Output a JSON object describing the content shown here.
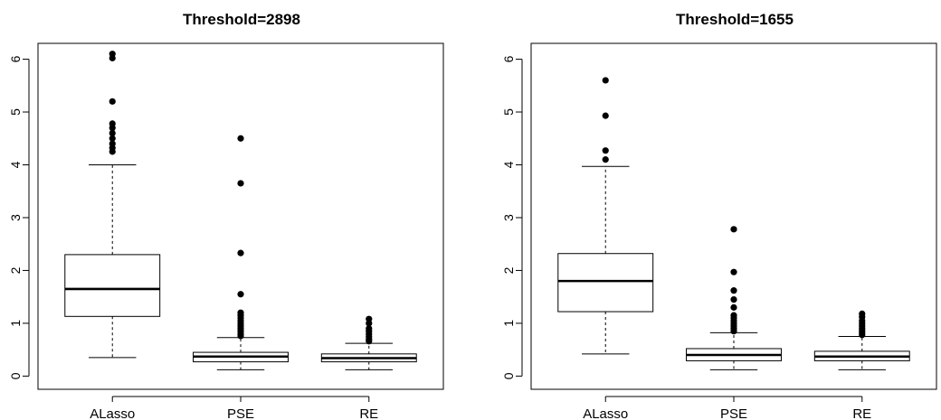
{
  "chart_data": [
    {
      "type": "boxplot",
      "title": "Threshold=2898",
      "xlabel": "",
      "ylabel": "",
      "ylim": [
        -0.25,
        6.3
      ],
      "yticks": [
        0,
        1,
        2,
        3,
        4,
        5,
        6
      ],
      "ytick_labels": [
        "0",
        "1",
        "2",
        "3",
        "4",
        "5",
        "6"
      ],
      "categories": [
        "ALasso",
        "PSE",
        "RE"
      ],
      "boxes": [
        {
          "name": "ALasso",
          "whisker_low": 0.35,
          "q1": 1.13,
          "median": 1.65,
          "q3": 2.3,
          "whisker_high": 4.0,
          "outliers": [
            4.25,
            4.32,
            4.4,
            4.5,
            4.6,
            4.7,
            4.78,
            5.2,
            6.02,
            6.1
          ]
        },
        {
          "name": "PSE",
          "whisker_low": 0.12,
          "q1": 0.27,
          "median": 0.37,
          "q3": 0.45,
          "whisker_high": 0.73,
          "outliers": [
            0.76,
            0.8,
            0.85,
            0.9,
            0.95,
            1.0,
            1.05,
            1.1,
            1.15,
            1.2,
            1.55,
            2.33,
            3.65,
            4.5
          ]
        },
        {
          "name": "RE",
          "whisker_low": 0.12,
          "q1": 0.27,
          "median": 0.34,
          "q3": 0.42,
          "whisker_high": 0.62,
          "outliers": [
            0.66,
            0.7,
            0.75,
            0.8,
            0.85,
            0.9,
            1.0,
            1.08
          ]
        }
      ],
      "grid": false
    },
    {
      "type": "boxplot",
      "title": "Threshold=1655",
      "xlabel": "",
      "ylabel": "",
      "ylim": [
        -0.25,
        6.3
      ],
      "yticks": [
        0,
        1,
        2,
        3,
        4,
        5,
        6
      ],
      "ytick_labels": [
        "0",
        "1",
        "2",
        "3",
        "4",
        "5",
        "6"
      ],
      "categories": [
        "ALasso",
        "PSE",
        "RE"
      ],
      "boxes": [
        {
          "name": "ALasso",
          "whisker_low": 0.42,
          "q1": 1.22,
          "median": 1.8,
          "q3": 2.32,
          "whisker_high": 3.97,
          "outliers": [
            4.1,
            4.27,
            4.93,
            5.6
          ]
        },
        {
          "name": "PSE",
          "whisker_low": 0.12,
          "q1": 0.29,
          "median": 0.4,
          "q3": 0.52,
          "whisker_high": 0.82,
          "outliers": [
            0.85,
            0.9,
            0.95,
            1.0,
            1.05,
            1.1,
            1.15,
            1.3,
            1.45,
            1.62,
            1.97,
            2.78
          ]
        },
        {
          "name": "RE",
          "whisker_low": 0.12,
          "q1": 0.29,
          "median": 0.37,
          "q3": 0.47,
          "whisker_high": 0.75,
          "outliers": [
            0.78,
            0.82,
            0.86,
            0.9,
            0.95,
            1.0,
            1.05,
            1.12,
            1.18
          ]
        }
      ],
      "grid": false
    }
  ]
}
